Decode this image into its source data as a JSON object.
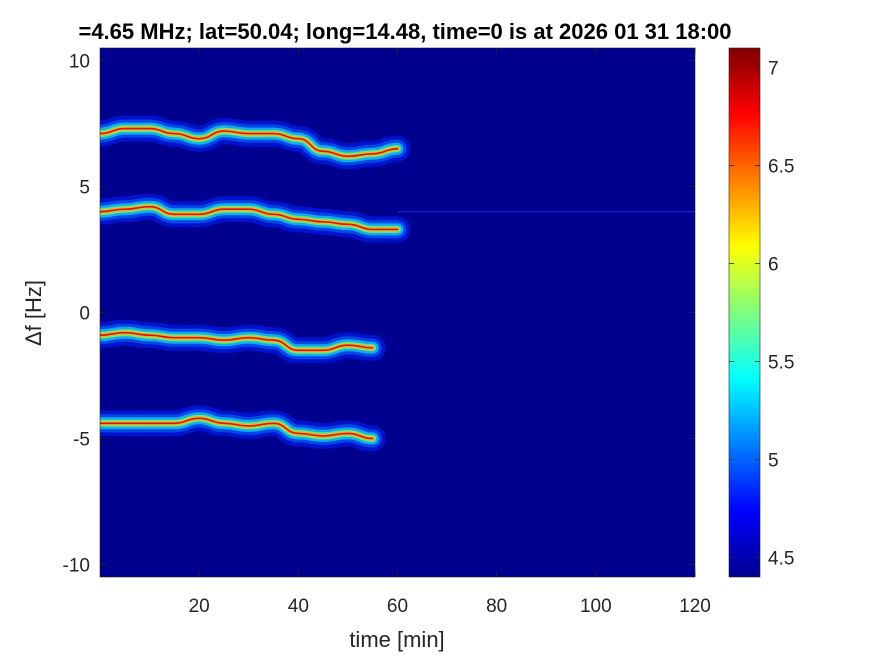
{
  "chart_data": {
    "type": "heatmap",
    "title": "=4.65 MHz;  lat=50.04; long=14.48, time=0 is at 2026 01 31 18:00",
    "xlabel": "time [min]",
    "ylabel": "Δf [Hz]",
    "xlim": [
      0,
      120
    ],
    "ylim": [
      -10.5,
      10.5
    ],
    "x_ticks": [
      "20",
      "40",
      "60",
      "80",
      "100",
      "120"
    ],
    "x_tick_values": [
      20,
      40,
      60,
      80,
      100,
      120
    ],
    "y_ticks": [
      "10",
      "5",
      "0",
      "-5",
      "-10"
    ],
    "y_tick_values": [
      10,
      5,
      0,
      -5,
      -10
    ],
    "colormap": "jet",
    "background_value": 4.45,
    "colorbar": {
      "range": [
        4.4,
        7.1
      ],
      "ticks": [
        "7",
        "6.5",
        "6",
        "5.5",
        "5",
        "4.5"
      ],
      "tick_values": [
        7,
        6.5,
        6,
        5.5,
        5,
        4.5
      ]
    },
    "traces": [
      {
        "x": [
          0,
          5,
          10,
          15,
          20,
          25,
          30,
          35,
          40,
          45,
          50,
          55,
          60
        ],
        "y": [
          7.1,
          7.3,
          7.3,
          7.1,
          6.9,
          7.2,
          7.1,
          7.1,
          6.9,
          6.4,
          6.2,
          6.3,
          6.5
        ]
      },
      {
        "x": [
          0,
          5,
          10,
          15,
          20,
          25,
          30,
          35,
          40,
          45,
          50,
          55,
          60
        ],
        "y": [
          4.0,
          4.1,
          4.2,
          3.9,
          3.9,
          4.1,
          4.1,
          3.9,
          3.7,
          3.6,
          3.5,
          3.3,
          3.3
        ]
      },
      {
        "x": [
          0,
          5,
          10,
          15,
          20,
          25,
          30,
          35,
          40,
          45,
          50,
          55
        ],
        "y": [
          -0.9,
          -0.8,
          -0.9,
          -1.0,
          -1.0,
          -1.1,
          -1.0,
          -1.1,
          -1.5,
          -1.5,
          -1.3,
          -1.4
        ]
      },
      {
        "x": [
          0,
          5,
          10,
          15,
          20,
          25,
          30,
          35,
          40,
          45,
          50,
          55
        ],
        "y": [
          -4.4,
          -4.4,
          -4.4,
          -4.4,
          -4.2,
          -4.4,
          -4.5,
          -4.4,
          -4.8,
          -4.9,
          -4.8,
          -5.0
        ]
      }
    ],
    "faint_line": {
      "y": 4.0,
      "x": [
        60,
        120
      ]
    }
  }
}
